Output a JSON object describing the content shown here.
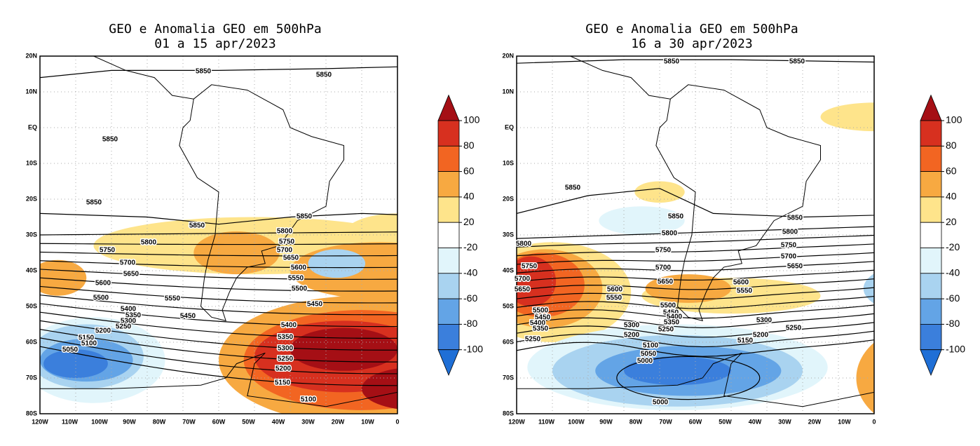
{
  "panels": [
    {
      "title": "GEO e Anomalia GEO em 500hPa",
      "subtitle": "01 a 15 apr/2023",
      "contour_labels": [
        5850,
        5850,
        5850,
        5850,
        5850,
        5850,
        5800,
        5800,
        5750,
        5750,
        5700,
        5700,
        5650,
        5650,
        5600,
        5600,
        5550,
        5550,
        5500,
        5500,
        5450,
        5450,
        5400,
        5350,
        5300,
        5250,
        5200,
        5150,
        5100,
        5050,
        5400,
        5350,
        5300,
        5250,
        5200,
        5150,
        5100
      ]
    },
    {
      "title": "GEO e Anomalia GEO em 500hPa",
      "subtitle": "16 a 30 apr/2023",
      "contour_labels": [
        5850,
        5850,
        5850,
        5850,
        5850,
        5800,
        5800,
        5800,
        5750,
        5750,
        5750,
        5700,
        5700,
        5700,
        5650,
        5650,
        5650,
        5600,
        5600,
        5550,
        5550,
        5500,
        5500,
        5450,
        5450,
        5400,
        5400,
        5350,
        5350,
        5300,
        5300,
        5250,
        5250,
        5250,
        5200,
        5200,
        5150,
        5100,
        5050,
        5000,
        5000
      ]
    }
  ],
  "lat_labels": [
    "20N",
    "10N",
    "EQ",
    "10S",
    "20S",
    "30S",
    "40S",
    "50S",
    "60S",
    "70S",
    "80S"
  ],
  "lon_labels": [
    "120W",
    "110W",
    "100W",
    "90W",
    "80W",
    "70W",
    "60W",
    "50W",
    "40W",
    "30W",
    "20W",
    "10W",
    "0"
  ],
  "colorbar": {
    "levels": [
      100,
      80,
      60,
      40,
      20,
      -20,
      -40,
      -60,
      -80,
      -100
    ],
    "colors": [
      "#a50f15",
      "#d7301f",
      "#f26522",
      "#f7a941",
      "#fee48b",
      "#ffffff",
      "#e1f5fb",
      "#a9d3f0",
      "#63a4e6",
      "#3b7fdc",
      "#1f6fd6"
    ]
  }
}
